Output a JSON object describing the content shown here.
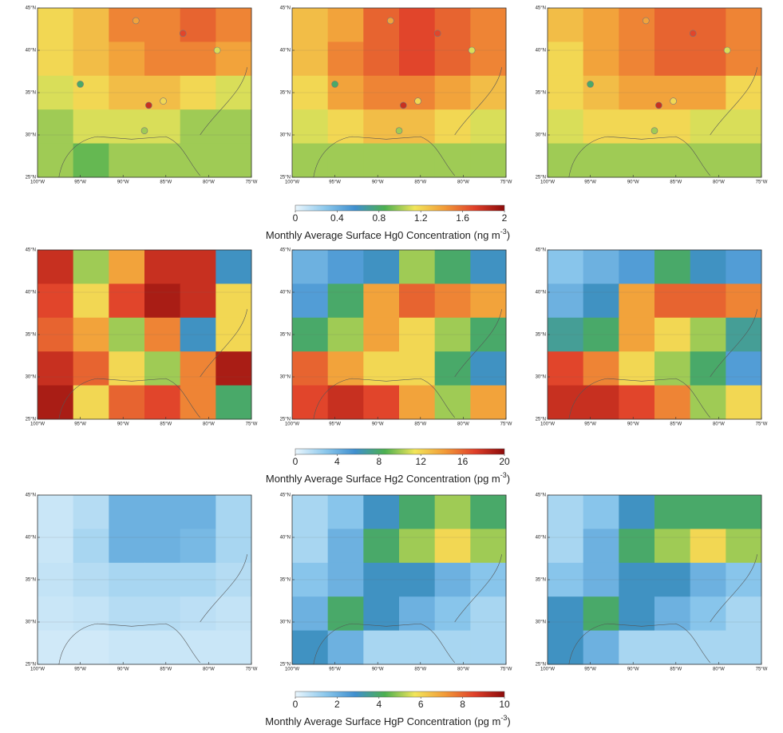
{
  "lon_range": [
    -100,
    -75
  ],
  "lat_range": [
    25,
    45
  ],
  "lon_ticks": [
    {
      "value": -100,
      "label": "100°W"
    },
    {
      "value": -95,
      "label": "95°W"
    },
    {
      "value": -90,
      "label": "90°W"
    },
    {
      "value": -85,
      "label": "85°W"
    },
    {
      "value": -80,
      "label": "80°W"
    },
    {
      "value": -75,
      "label": "75°W"
    }
  ],
  "lat_ticks": [
    {
      "value": 45,
      "label": "45°N"
    },
    {
      "value": 40,
      "label": "40°N"
    },
    {
      "value": 35,
      "label": "35°N"
    },
    {
      "value": 30,
      "label": "30°N"
    },
    {
      "value": 25,
      "label": "25°N"
    }
  ],
  "colormap": [
    "#eaf6fd",
    "#8cc8ec",
    "#3f8fcf",
    "#4cb050",
    "#f2e65a",
    "#f29b38",
    "#e0402a",
    "#8c0a0a"
  ],
  "rows": [
    {
      "colorbar": {
        "lim": [
          0,
          2
        ],
        "ticks": [
          0,
          0.4,
          0.8,
          1.2,
          1.6,
          2
        ],
        "label": "Monthly Average Surface Hg0 Concentration (ng m",
        "label_sup": "-3",
        "label_end": ")"
      },
      "sites": [
        {
          "lon": -88.5,
          "lat": 43.5,
          "value": 1.4
        },
        {
          "lon": -83,
          "lat": 42,
          "value": 1.7
        },
        {
          "lon": -79,
          "lat": 40,
          "value": 1.1
        },
        {
          "lon": -95,
          "lat": 36,
          "value": 0.8
        },
        {
          "lon": -87,
          "lat": 33.5,
          "value": 1.8
        },
        {
          "lon": -85.3,
          "lat": 34,
          "value": 1.2
        },
        {
          "lon": -87.5,
          "lat": 30.5,
          "value": 1.0
        }
      ],
      "panels": [
        {
          "grid": [
            [
              1.2,
              1.3,
              1.5,
              1.5,
              1.6,
              1.5
            ],
            [
              1.2,
              1.3,
              1.4,
              1.5,
              1.5,
              1.4
            ],
            [
              1.1,
              1.2,
              1.3,
              1.3,
              1.2,
              1.1
            ],
            [
              1.0,
              1.1,
              1.1,
              1.1,
              1.0,
              1.0
            ],
            [
              1.0,
              0.9,
              1.0,
              1.0,
              1.0,
              1.0
            ]
          ]
        },
        {
          "grid": [
            [
              1.3,
              1.4,
              1.6,
              1.7,
              1.6,
              1.5
            ],
            [
              1.3,
              1.5,
              1.6,
              1.7,
              1.6,
              1.5
            ],
            [
              1.2,
              1.4,
              1.5,
              1.5,
              1.4,
              1.3
            ],
            [
              1.1,
              1.2,
              1.3,
              1.3,
              1.2,
              1.1
            ],
            [
              1.0,
              1.0,
              1.0,
              1.0,
              1.0,
              1.0
            ]
          ]
        },
        {
          "grid": [
            [
              1.3,
              1.4,
              1.5,
              1.6,
              1.6,
              1.5
            ],
            [
              1.2,
              1.4,
              1.5,
              1.6,
              1.6,
              1.5
            ],
            [
              1.2,
              1.3,
              1.4,
              1.4,
              1.4,
              1.2
            ],
            [
              1.1,
              1.2,
              1.2,
              1.2,
              1.1,
              1.1
            ],
            [
              1.0,
              1.0,
              1.0,
              1.0,
              1.0,
              1.0
            ]
          ]
        }
      ]
    },
    {
      "colorbar": {
        "lim": [
          0,
          20
        ],
        "ticks": [
          0,
          4,
          8,
          12,
          16,
          20
        ],
        "label": "Monthly Average Surface Hg2 Concentration (pg m",
        "label_sup": "-3",
        "label_end": ")"
      },
      "panels": [
        {
          "grid": [
            [
              18,
              10,
              14,
              18,
              18,
              6
            ],
            [
              17,
              12,
              17,
              19,
              18,
              12
            ],
            [
              16,
              14,
              10,
              15,
              6,
              12
            ],
            [
              18,
              16,
              12,
              10,
              15,
              19
            ],
            [
              19,
              12,
              16,
              17,
              15,
              8
            ]
          ]
        },
        {
          "grid": [
            [
              4,
              5,
              6,
              10,
              8,
              6
            ],
            [
              5,
              8,
              14,
              16,
              15,
              14
            ],
            [
              8,
              10,
              14,
              12,
              10,
              8
            ],
            [
              16,
              14,
              12,
              12,
              8,
              6
            ],
            [
              17,
              18,
              17,
              14,
              10,
              14
            ]
          ]
        },
        {
          "grid": [
            [
              3,
              4,
              5,
              8,
              6,
              5
            ],
            [
              4,
              6,
              14,
              16,
              16,
              15
            ],
            [
              7,
              8,
              14,
              12,
              10,
              7
            ],
            [
              17,
              15,
              12,
              10,
              8,
              5
            ],
            [
              18,
              18,
              17,
              15,
              10,
              12
            ]
          ]
        }
      ]
    },
    {
      "colorbar": {
        "lim": [
          0,
          10
        ],
        "ticks": [
          0,
          2,
          4,
          6,
          8,
          10
        ],
        "label": "Monthly Average Surface HgP Concentration (pg m",
        "label_sup": "-3",
        "label_end": ")"
      },
      "panels": [
        {
          "grid": [
            [
              0.5,
              0.8,
              2,
              2,
              2,
              1
            ],
            [
              0.5,
              1,
              2,
              2,
              1.8,
              1
            ],
            [
              0.6,
              0.8,
              1,
              1,
              1,
              0.8
            ],
            [
              0.5,
              0.6,
              0.8,
              0.8,
              0.7,
              0.6
            ],
            [
              0.4,
              0.4,
              0.5,
              0.5,
              0.5,
              0.5
            ]
          ]
        },
        {
          "grid": [
            [
              1,
              1.5,
              3,
              4,
              5,
              4
            ],
            [
              1,
              2,
              4,
              5,
              6,
              5
            ],
            [
              1.5,
              2,
              3,
              3,
              2,
              1.5
            ],
            [
              2,
              4,
              3,
              2,
              1.5,
              1
            ],
            [
              3,
              2,
              1,
              1,
              1,
              1
            ]
          ]
        },
        {
          "grid": [
            [
              1,
              1.5,
              3,
              4,
              4,
              4
            ],
            [
              1,
              2,
              4,
              5,
              6,
              5
            ],
            [
              1.5,
              2,
              3,
              3,
              2,
              1.5
            ],
            [
              3,
              4,
              3,
              2,
              1.5,
              1
            ],
            [
              3,
              2,
              1,
              1,
              1,
              1
            ]
          ]
        }
      ]
    }
  ]
}
